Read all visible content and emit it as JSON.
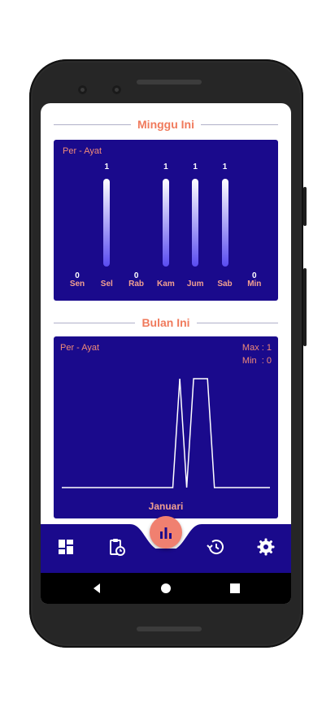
{
  "weekly": {
    "title": "Minggu Ini",
    "unit_label": "Per - Ayat",
    "days": [
      {
        "day": "Sen",
        "value": 0
      },
      {
        "day": "Sel",
        "value": 1
      },
      {
        "day": "Rab",
        "value": 0
      },
      {
        "day": "Kam",
        "value": 1
      },
      {
        "day": "Jum",
        "value": 1
      },
      {
        "day": "Sab",
        "value": 1
      },
      {
        "day": "Min",
        "value": 0
      }
    ]
  },
  "monthly": {
    "title": "Bulan Ini",
    "unit_label": "Per - Ayat",
    "max_label": "Max : 1",
    "min_label": "Min  : 0",
    "month": "Januari"
  },
  "chart_data": [
    {
      "type": "bar",
      "categories": [
        "Sen",
        "Sel",
        "Rab",
        "Kam",
        "Jum",
        "Sab",
        "Min"
      ],
      "values": [
        0,
        1,
        0,
        1,
        1,
        1,
        0
      ],
      "title": "Minggu Ini",
      "ylabel": "Per - Ayat",
      "ylim": [
        0,
        1
      ]
    },
    {
      "type": "line",
      "title": "Bulan Ini",
      "xlabel": "Januari",
      "ylabel": "Per - Ayat",
      "x": [
        1,
        2,
        3,
        4,
        5,
        6,
        7,
        8,
        9,
        10,
        11,
        12,
        13,
        14,
        15,
        16,
        17,
        18,
        19,
        20,
        21,
        22,
        23,
        24,
        25,
        26,
        27,
        28,
        29,
        30,
        31
      ],
      "values": [
        0,
        0,
        0,
        0,
        0,
        0,
        0,
        0,
        0,
        0,
        0,
        0,
        0,
        0,
        0,
        0,
        0,
        1,
        0,
        1,
        1,
        1,
        0,
        0,
        0,
        0,
        0,
        0,
        0,
        0,
        0
      ],
      "ylim": [
        0,
        1
      ]
    }
  ],
  "nav": {
    "items": [
      "dashboard-icon",
      "clipboard-clock-icon",
      "bar-chart-icon",
      "history-icon",
      "settings-icon"
    ],
    "active": "bar-chart-icon"
  },
  "colors": {
    "card_bg": "#1a0a8c",
    "accent": "#f07a5c",
    "bar_gradient_top": "#ffffff",
    "bar_gradient_bottom": "#5a4cf0"
  }
}
